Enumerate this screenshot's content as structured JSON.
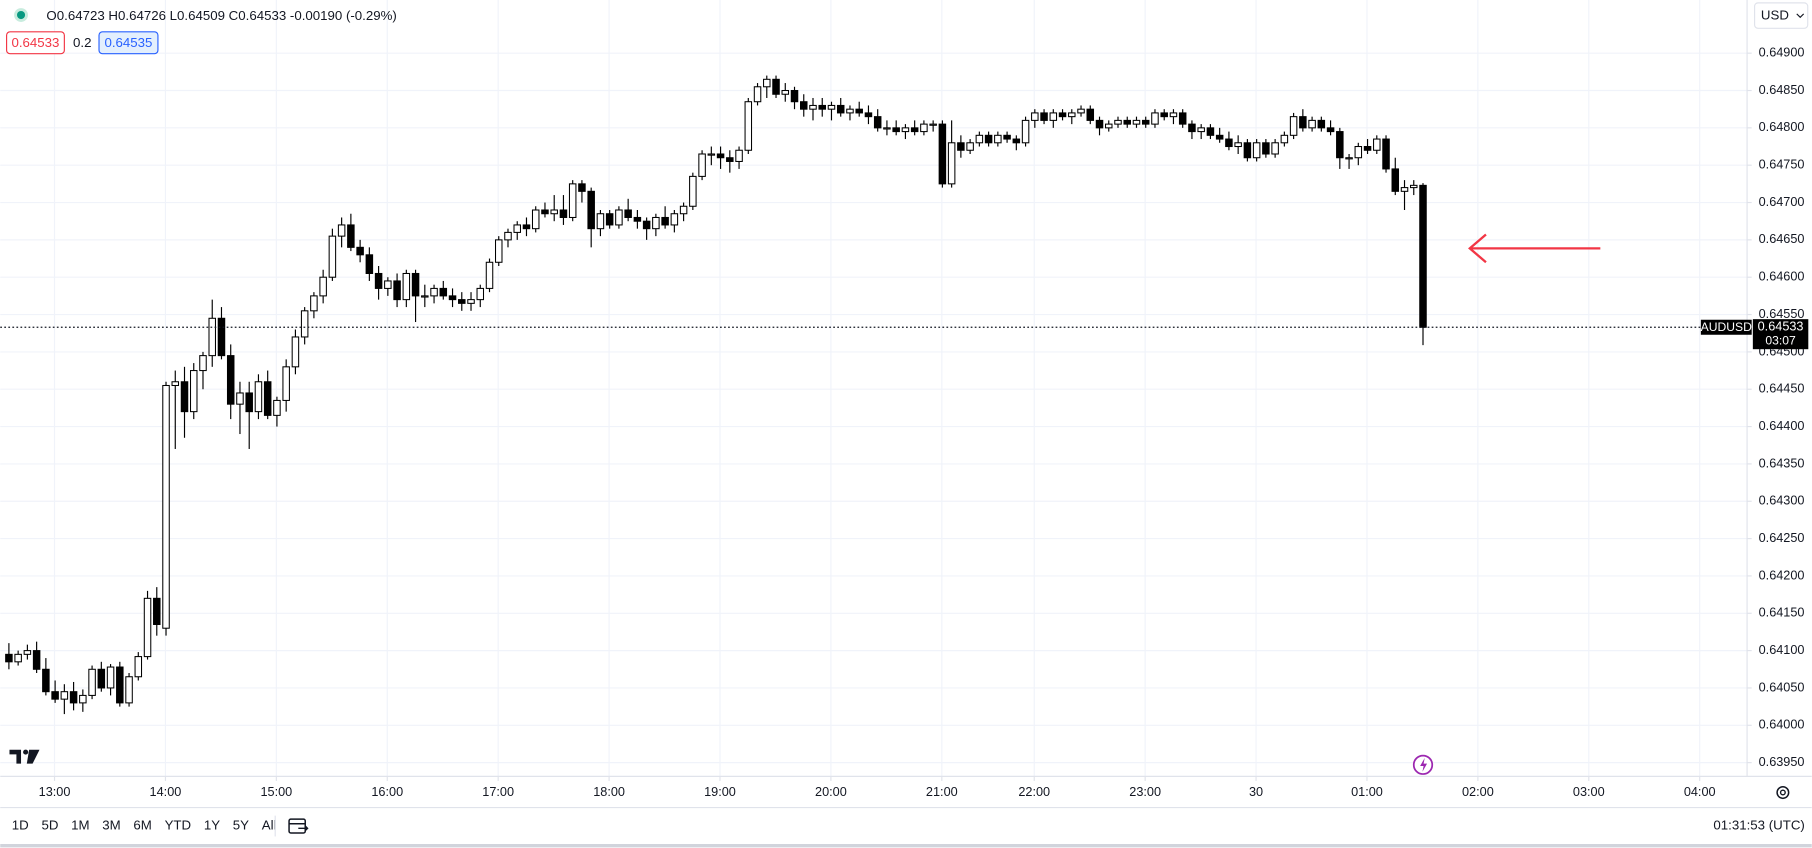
{
  "chart_data": {
    "type": "candlestick",
    "header": {
      "open_label": "O",
      "open": "0.64723",
      "high_label": "H",
      "high": "0.64726",
      "low_label": "L",
      "low": "0.64509",
      "close_label": "C",
      "close": "0.64533",
      "change": "-0.00190 (-0.29%)"
    },
    "order_panel": {
      "sell": "0.64533",
      "spread": "0.2",
      "buy": "0.64535"
    },
    "currency": "USD",
    "last_price": {
      "symbol": "AUDUSD",
      "price": 0.64533,
      "countdown": "03:07"
    },
    "up_color": "#ffffff",
    "down_color": "#000000",
    "wick_color": "#000000",
    "grid": true,
    "xlim": [
      -0.875,
      188.125
    ],
    "xticks": [
      {
        "value": 5,
        "label": "13:00"
      },
      {
        "value": 17,
        "label": "14:00"
      },
      {
        "value": 29,
        "label": "15:00"
      },
      {
        "value": 41,
        "label": "16:00"
      },
      {
        "value": 53,
        "label": "17:00"
      },
      {
        "value": 65,
        "label": "18:00"
      },
      {
        "value": 77,
        "label": "19:00"
      },
      {
        "value": 89,
        "label": "20:00"
      },
      {
        "value": 101,
        "label": "21:00"
      },
      {
        "value": 111,
        "label": "22:00"
      },
      {
        "value": 123,
        "label": "23:00"
      },
      {
        "value": 135,
        "label": "30"
      },
      {
        "value": 147,
        "label": "01:00"
      },
      {
        "value": 159,
        "label": "02:00"
      },
      {
        "value": 171,
        "label": "03:00"
      },
      {
        "value": 183,
        "label": "04:00"
      }
    ],
    "ylim": [
      0.639316,
      0.649712
    ],
    "yticks": [
      {
        "value": 0.6395,
        "label": "0.63950"
      },
      {
        "value": 0.64,
        "label": "0.64000"
      },
      {
        "value": 0.6405,
        "label": "0.64050"
      },
      {
        "value": 0.641,
        "label": "0.64100"
      },
      {
        "value": 0.6415,
        "label": "0.64150"
      },
      {
        "value": 0.642,
        "label": "0.64200"
      },
      {
        "value": 0.6425,
        "label": "0.64250"
      },
      {
        "value": 0.643,
        "label": "0.64300"
      },
      {
        "value": 0.6435,
        "label": "0.64350"
      },
      {
        "value": 0.644,
        "label": "0.64400"
      },
      {
        "value": 0.6445,
        "label": "0.64450"
      },
      {
        "value": 0.645,
        "label": "0.64500"
      },
      {
        "value": 0.6455,
        "label": "0.64550"
      },
      {
        "value": 0.646,
        "label": "0.64600"
      },
      {
        "value": 0.6465,
        "label": "0.64650"
      },
      {
        "value": 0.647,
        "label": "0.64700"
      },
      {
        "value": 0.6475,
        "label": "0.64750"
      },
      {
        "value": 0.648,
        "label": "0.64800"
      },
      {
        "value": 0.6485,
        "label": "0.64850"
      },
      {
        "value": 0.649,
        "label": "0.64900"
      }
    ],
    "ohlc": [
      [
        0.64095,
        0.6411,
        0.64075,
        0.64085
      ],
      [
        0.64085,
        0.641,
        0.6408,
        0.64095
      ],
      [
        0.64095,
        0.64108,
        0.64088,
        0.641
      ],
      [
        0.641,
        0.64112,
        0.6407,
        0.64075
      ],
      [
        0.64075,
        0.6409,
        0.6404,
        0.64045
      ],
      [
        0.64045,
        0.6406,
        0.6403,
        0.64035
      ],
      [
        0.64035,
        0.64055,
        0.64015,
        0.64045
      ],
      [
        0.64045,
        0.64058,
        0.6402,
        0.6403
      ],
      [
        0.6403,
        0.64048,
        0.64018,
        0.6404
      ],
      [
        0.6404,
        0.6408,
        0.64035,
        0.64075
      ],
      [
        0.64075,
        0.64085,
        0.64045,
        0.6405
      ],
      [
        0.6405,
        0.64082,
        0.6404,
        0.64078
      ],
      [
        0.64078,
        0.64085,
        0.64025,
        0.6403
      ],
      [
        0.6403,
        0.6407,
        0.64025,
        0.64065
      ],
      [
        0.64065,
        0.64098,
        0.6406,
        0.64092
      ],
      [
        0.64092,
        0.6418,
        0.64088,
        0.6417
      ],
      [
        0.6417,
        0.64185,
        0.6412,
        0.64135
      ],
      [
        0.6413,
        0.6446,
        0.6412,
        0.64455
      ],
      [
        0.64455,
        0.64475,
        0.6437,
        0.6446
      ],
      [
        0.6446,
        0.6448,
        0.64385,
        0.6442
      ],
      [
        0.6442,
        0.64485,
        0.6441,
        0.64475
      ],
      [
        0.64475,
        0.645,
        0.6445,
        0.64495
      ],
      [
        0.64495,
        0.6457,
        0.6448,
        0.64545
      ],
      [
        0.64545,
        0.6456,
        0.6449,
        0.64495
      ],
      [
        0.64495,
        0.6451,
        0.6441,
        0.6443
      ],
      [
        0.6443,
        0.6446,
        0.6439,
        0.64445
      ],
      [
        0.64445,
        0.6446,
        0.6437,
        0.6442
      ],
      [
        0.6442,
        0.6447,
        0.6441,
        0.6446
      ],
      [
        0.6446,
        0.64475,
        0.6441,
        0.64415
      ],
      [
        0.64415,
        0.6444,
        0.644,
        0.64435
      ],
      [
        0.64435,
        0.6449,
        0.6442,
        0.6448
      ],
      [
        0.6448,
        0.6453,
        0.6447,
        0.6452
      ],
      [
        0.6452,
        0.6456,
        0.6451,
        0.64555
      ],
      [
        0.64555,
        0.6458,
        0.64545,
        0.64575
      ],
      [
        0.64575,
        0.6461,
        0.64565,
        0.646
      ],
      [
        0.646,
        0.64665,
        0.64595,
        0.64655
      ],
      [
        0.64655,
        0.6468,
        0.6464,
        0.6467
      ],
      [
        0.6467,
        0.64685,
        0.64635,
        0.6464
      ],
      [
        0.6464,
        0.6465,
        0.6462,
        0.6463
      ],
      [
        0.6463,
        0.6464,
        0.64595,
        0.64605
      ],
      [
        0.64605,
        0.64615,
        0.6457,
        0.64585
      ],
      [
        0.64585,
        0.646,
        0.64575,
        0.64595
      ],
      [
        0.64595,
        0.64605,
        0.6456,
        0.6457
      ],
      [
        0.6457,
        0.6461,
        0.6456,
        0.64605
      ],
      [
        0.64605,
        0.6461,
        0.6454,
        0.64575
      ],
      [
        0.64575,
        0.6459,
        0.6456,
        0.64575
      ],
      [
        0.64575,
        0.6459,
        0.64565,
        0.64585
      ],
      [
        0.64585,
        0.64595,
        0.6457,
        0.64575
      ],
      [
        0.64575,
        0.64585,
        0.6456,
        0.6457
      ],
      [
        0.6457,
        0.6458,
        0.64555,
        0.64565
      ],
      [
        0.64565,
        0.6458,
        0.64555,
        0.6457
      ],
      [
        0.6457,
        0.6459,
        0.6456,
        0.64585
      ],
      [
        0.64585,
        0.64625,
        0.6458,
        0.6462
      ],
      [
        0.6462,
        0.64655,
        0.64615,
        0.6465
      ],
      [
        0.6465,
        0.64665,
        0.6464,
        0.6466
      ],
      [
        0.6466,
        0.64675,
        0.6465,
        0.6467
      ],
      [
        0.6467,
        0.6468,
        0.64655,
        0.64665
      ],
      [
        0.64665,
        0.64695,
        0.6466,
        0.6469
      ],
      [
        0.6469,
        0.647,
        0.6468,
        0.64685
      ],
      [
        0.64685,
        0.6471,
        0.64675,
        0.6469
      ],
      [
        0.6469,
        0.6471,
        0.6467,
        0.6468
      ],
      [
        0.6468,
        0.6473,
        0.64675,
        0.64725
      ],
      [
        0.64725,
        0.6473,
        0.647,
        0.64715
      ],
      [
        0.64715,
        0.6472,
        0.6464,
        0.64665
      ],
      [
        0.64665,
        0.6469,
        0.64655,
        0.64685
      ],
      [
        0.64685,
        0.6469,
        0.64665,
        0.6467
      ],
      [
        0.6467,
        0.64695,
        0.64665,
        0.6469
      ],
      [
        0.6469,
        0.64705,
        0.64675,
        0.6468
      ],
      [
        0.6468,
        0.6469,
        0.64665,
        0.64675
      ],
      [
        0.64675,
        0.6468,
        0.6465,
        0.64665
      ],
      [
        0.64665,
        0.64685,
        0.64655,
        0.6468
      ],
      [
        0.6468,
        0.64695,
        0.64665,
        0.6467
      ],
      [
        0.6467,
        0.6469,
        0.6466,
        0.64685
      ],
      [
        0.64685,
        0.647,
        0.64675,
        0.64695
      ],
      [
        0.64695,
        0.6474,
        0.6469,
        0.64735
      ],
      [
        0.64735,
        0.6477,
        0.6473,
        0.64765
      ],
      [
        0.64765,
        0.64775,
        0.6475,
        0.64765
      ],
      [
        0.64765,
        0.64775,
        0.64745,
        0.6476
      ],
      [
        0.6476,
        0.6477,
        0.6474,
        0.64755
      ],
      [
        0.64755,
        0.64775,
        0.64745,
        0.6477
      ],
      [
        0.6477,
        0.6484,
        0.64765,
        0.64835
      ],
      [
        0.64835,
        0.6486,
        0.6483,
        0.64855
      ],
      [
        0.64855,
        0.6487,
        0.6484,
        0.64865
      ],
      [
        0.64865,
        0.6487,
        0.6484,
        0.64845
      ],
      [
        0.64845,
        0.6486,
        0.64835,
        0.6485
      ],
      [
        0.6485,
        0.64855,
        0.64825,
        0.64835
      ],
      [
        0.64835,
        0.64845,
        0.64815,
        0.64825
      ],
      [
        0.64825,
        0.6484,
        0.6481,
        0.6483
      ],
      [
        0.6483,
        0.6484,
        0.64815,
        0.64825
      ],
      [
        0.64825,
        0.64835,
        0.6481,
        0.6483
      ],
      [
        0.6483,
        0.6484,
        0.64815,
        0.6482
      ],
      [
        0.6482,
        0.6483,
        0.6481,
        0.64825
      ],
      [
        0.64825,
        0.64835,
        0.64815,
        0.6482
      ],
      [
        0.6482,
        0.6483,
        0.64805,
        0.64815
      ],
      [
        0.64815,
        0.64825,
        0.64795,
        0.648
      ],
      [
        0.648,
        0.6481,
        0.6479,
        0.648
      ],
      [
        0.648,
        0.6481,
        0.6479,
        0.64795
      ],
      [
        0.64795,
        0.64805,
        0.64785,
        0.648
      ],
      [
        0.648,
        0.6481,
        0.6479,
        0.64795
      ],
      [
        0.64795,
        0.6481,
        0.6479,
        0.64805
      ],
      [
        0.64805,
        0.6481,
        0.64795,
        0.64805
      ],
      [
        0.64805,
        0.6481,
        0.6472,
        0.64725
      ],
      [
        0.64725,
        0.6481,
        0.6472,
        0.6478
      ],
      [
        0.6478,
        0.6479,
        0.6476,
        0.6477
      ],
      [
        0.6477,
        0.64785,
        0.64765,
        0.6478
      ],
      [
        0.6478,
        0.64795,
        0.64775,
        0.6479
      ],
      [
        0.6479,
        0.64795,
        0.64775,
        0.6478
      ],
      [
        0.6478,
        0.64795,
        0.64775,
        0.6479
      ],
      [
        0.6479,
        0.64795,
        0.6478,
        0.64785
      ],
      [
        0.64785,
        0.6479,
        0.6477,
        0.6478
      ],
      [
        0.6478,
        0.64815,
        0.64775,
        0.6481
      ],
      [
        0.6481,
        0.64825,
        0.648,
        0.6482
      ],
      [
        0.6482,
        0.64825,
        0.64805,
        0.6481
      ],
      [
        0.6481,
        0.64825,
        0.648,
        0.6482
      ],
      [
        0.6482,
        0.64825,
        0.6481,
        0.64815
      ],
      [
        0.64815,
        0.64825,
        0.64805,
        0.6482
      ],
      [
        0.6482,
        0.6483,
        0.64815,
        0.64825
      ],
      [
        0.64825,
        0.6483,
        0.64805,
        0.6481
      ],
      [
        0.6481,
        0.64815,
        0.6479,
        0.648
      ],
      [
        0.648,
        0.6481,
        0.64795,
        0.64805
      ],
      [
        0.64805,
        0.64815,
        0.648,
        0.6481
      ],
      [
        0.6481,
        0.64815,
        0.648,
        0.64805
      ],
      [
        0.64805,
        0.64815,
        0.648,
        0.6481
      ],
      [
        0.6481,
        0.64815,
        0.648,
        0.64805
      ],
      [
        0.64805,
        0.64825,
        0.648,
        0.6482
      ],
      [
        0.6482,
        0.64825,
        0.6481,
        0.64815
      ],
      [
        0.64815,
        0.64825,
        0.64805,
        0.6482
      ],
      [
        0.6482,
        0.64825,
        0.648,
        0.64805
      ],
      [
        0.64805,
        0.6481,
        0.64785,
        0.64795
      ],
      [
        0.64795,
        0.64805,
        0.64785,
        0.648
      ],
      [
        0.648,
        0.64805,
        0.64785,
        0.6479
      ],
      [
        0.6479,
        0.648,
        0.6478,
        0.64785
      ],
      [
        0.64785,
        0.64795,
        0.6477,
        0.64775
      ],
      [
        0.64775,
        0.6479,
        0.64765,
        0.6478
      ],
      [
        0.6478,
        0.64785,
        0.64755,
        0.6476
      ],
      [
        0.6476,
        0.64785,
        0.64755,
        0.6478
      ],
      [
        0.6478,
        0.64785,
        0.6476,
        0.64765
      ],
      [
        0.64765,
        0.64785,
        0.6476,
        0.6478
      ],
      [
        0.6478,
        0.64795,
        0.64775,
        0.6479
      ],
      [
        0.6479,
        0.6482,
        0.64785,
        0.64815
      ],
      [
        0.64815,
        0.64825,
        0.64795,
        0.648
      ],
      [
        0.648,
        0.64815,
        0.64795,
        0.6481
      ],
      [
        0.6481,
        0.64815,
        0.64795,
        0.648
      ],
      [
        0.648,
        0.6481,
        0.6479,
        0.64795
      ],
      [
        0.64795,
        0.648,
        0.64745,
        0.6476
      ],
      [
        0.6476,
        0.64765,
        0.64745,
        0.6476
      ],
      [
        0.6476,
        0.6478,
        0.6475,
        0.64775
      ],
      [
        0.64775,
        0.64785,
        0.64765,
        0.6477
      ],
      [
        0.6477,
        0.6479,
        0.64765,
        0.64785
      ],
      [
        0.64785,
        0.6479,
        0.6474,
        0.64745
      ],
      [
        0.64745,
        0.6476,
        0.6471,
        0.64715
      ],
      [
        0.64715,
        0.6473,
        0.6469,
        0.6472
      ],
      [
        0.6472,
        0.6473,
        0.6471,
        0.64723
      ],
      [
        0.64723,
        0.64726,
        0.64509,
        0.64533
      ]
    ],
    "toolbar": {
      "ranges": [
        "1D",
        "5D",
        "1M",
        "3M",
        "6M",
        "YTD",
        "1Y",
        "5Y",
        "All"
      ],
      "clock": "01:31:53 (UTC)"
    }
  }
}
